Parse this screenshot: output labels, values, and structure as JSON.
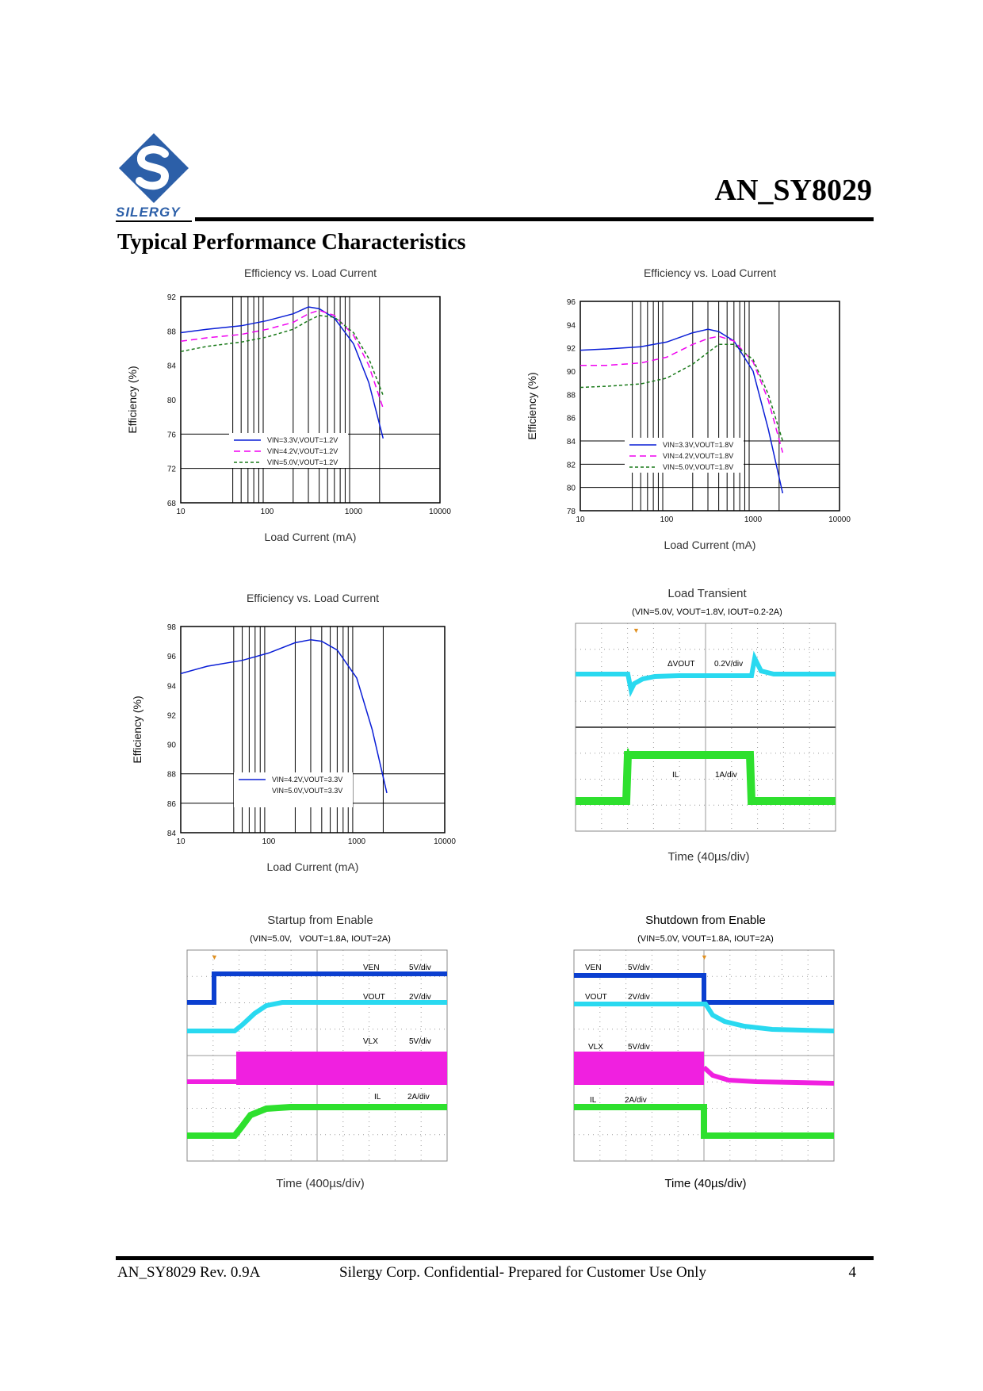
{
  "header": {
    "logo_text": "SILERGY",
    "doc_title": "AN_SY8029"
  },
  "section_title": "Typical Performance Characteristics",
  "colors": {
    "blue": "#0a1ed6",
    "magenta": "#f000f0",
    "green": "#1a7a1a",
    "scope_cyan": "#29d9f0",
    "scope_green": "#2ee02e",
    "scope_blue": "#0b3fd0",
    "scope_magenta": "#f020e0",
    "logo_blue": "#2c5fa8"
  },
  "chart_data": [
    {
      "type": "line",
      "title": "Efficiency vs. Load Current",
      "xlabel": "Load Current (mA)",
      "ylabel": "Efficiency (%)",
      "xscale": "log",
      "xlim": [
        10,
        10000
      ],
      "ylim": [
        68,
        92
      ],
      "yticks": [
        "92",
        "88",
        "84",
        "80",
        "76",
        "72",
        "68"
      ],
      "xticks": [
        "10",
        "100",
        "1000",
        "10000"
      ],
      "series": [
        {
          "name": "VIN=3.3V,VOUT=1.2V",
          "style": "solid",
          "color": "blue",
          "x": [
            10,
            20,
            50,
            100,
            200,
            300,
            400,
            600,
            1000,
            1500,
            2200
          ],
          "y": [
            87.8,
            88.2,
            88.6,
            89.2,
            90.0,
            90.8,
            90.6,
            89.5,
            86.5,
            82.0,
            75.5
          ]
        },
        {
          "name": "VIN=4.2V,VOUT=1.2V",
          "style": "dashed",
          "color": "magenta",
          "x": [
            10,
            20,
            50,
            100,
            200,
            300,
            400,
            600,
            1000,
            1500,
            2200
          ],
          "y": [
            86.8,
            87.2,
            87.6,
            88.2,
            89.0,
            90.0,
            90.4,
            89.8,
            87.5,
            84.0,
            79.0
          ]
        },
        {
          "name": "VIN=5.0V,VOUT=1.2V",
          "style": "dashed",
          "color": "green",
          "x": [
            10,
            20,
            50,
            100,
            200,
            300,
            400,
            600,
            1000,
            1500,
            2200
          ],
          "y": [
            85.6,
            86.2,
            86.7,
            87.3,
            88.2,
            89.2,
            89.8,
            89.6,
            87.8,
            84.8,
            80.5
          ]
        }
      ]
    },
    {
      "type": "line",
      "title": "Efficiency vs. Load Current",
      "xlabel": "Load Current (mA)",
      "ylabel": "Efficiency (%)",
      "xscale": "log",
      "xlim": [
        10,
        10000
      ],
      "ylim": [
        78,
        96
      ],
      "yticks": [
        "96",
        "94",
        "92",
        "90",
        "88",
        "86",
        "84",
        "82",
        "80",
        "78"
      ],
      "xticks": [
        "10",
        "100",
        "1000",
        "10000"
      ],
      "series": [
        {
          "name": "VIN=3.3V,VOUT=1.8V",
          "style": "solid",
          "color": "blue",
          "x": [
            10,
            20,
            50,
            100,
            200,
            300,
            400,
            600,
            1000,
            1500,
            2200
          ],
          "y": [
            91.8,
            91.9,
            92.1,
            92.5,
            93.3,
            93.6,
            93.4,
            92.6,
            90.0,
            85.0,
            79.5
          ]
        },
        {
          "name": "VIN=4.2V,VOUT=1.8V",
          "style": "dashed",
          "color": "magenta",
          "x": [
            10,
            20,
            50,
            100,
            200,
            300,
            400,
            600,
            1000,
            1500,
            2200
          ],
          "y": [
            90.5,
            90.5,
            90.7,
            91.2,
            92.3,
            92.8,
            93.0,
            92.6,
            90.8,
            87.5,
            83.0
          ]
        },
        {
          "name": "VIN=5.0V,VOUT=1.8V",
          "style": "dashed",
          "color": "green",
          "x": [
            10,
            20,
            50,
            100,
            200,
            300,
            400,
            600,
            1000,
            1500,
            2200
          ],
          "y": [
            88.6,
            88.7,
            88.9,
            89.4,
            90.6,
            91.6,
            92.3,
            92.3,
            91.0,
            88.0,
            84.0
          ]
        }
      ]
    },
    {
      "type": "line",
      "title": "Efficiency vs. Load Current",
      "xlabel": "Load Current (mA)",
      "ylabel": "Efficiency (%)",
      "xscale": "log",
      "xlim": [
        10,
        10000
      ],
      "ylim": [
        84,
        98
      ],
      "yticks": [
        "98",
        "96",
        "94",
        "92",
        "90",
        "88",
        "86",
        "84"
      ],
      "xticks": [
        "10",
        "100",
        "1000",
        "10000"
      ],
      "series": [
        {
          "name": "VIN=4.2V,VOUT=3.3V",
          "style": "solid",
          "color": "blue",
          "x": [
            10,
            20,
            50,
            100,
            200,
            300,
            400,
            600,
            1000,
            1500,
            2200
          ],
          "y": [
            94.8,
            95.3,
            95.7,
            96.2,
            96.9,
            97.1,
            97.0,
            96.4,
            94.5,
            91.0,
            86.7
          ]
        },
        {
          "name": "VIN=5.0V,VOUT=3.3V",
          "style": "none",
          "color": "blue",
          "x": [],
          "y": []
        }
      ]
    }
  ],
  "scopes": [
    {
      "title": "Load Transient",
      "subtitle": "(VIN=5.0V, VOUT=1.8V, IOUT=0.2-2A)",
      "time_label": "Time (40µs/div)",
      "channels": [
        {
          "label": "ΔVOUT",
          "scale": "0.2V/div"
        },
        {
          "label": "IL",
          "scale": "1A/div"
        }
      ]
    },
    {
      "title": "Startup from Enable",
      "subtitle": "(VIN=5.0V,   VOUT=1.8A, IOUT=2A)",
      "time_label": "Time (400µs/div)",
      "channels": [
        {
          "label": "VEN",
          "scale": "5V/div"
        },
        {
          "label": "VOUT",
          "scale": "2V/div"
        },
        {
          "label": "VLX",
          "scale": "5V/div"
        },
        {
          "label": "IL",
          "scale": "2A/div"
        }
      ]
    },
    {
      "title": "Shutdown from Enable",
      "subtitle": "(VIN=5.0V, VOUT=1.8A, IOUT=2A)",
      "time_label": "Time (40µs/div)",
      "channels": [
        {
          "label": "VEN",
          "scale": "5V/div"
        },
        {
          "label": "VOUT",
          "scale": "2V/div"
        },
        {
          "label": "VLX",
          "scale": "5V/div"
        },
        {
          "label": "IL",
          "scale": "2A/div"
        }
      ]
    }
  ],
  "footer": {
    "left": "AN_SY8029 Rev. 0.9A",
    "center": "Silergy Corp. Confidential- Prepared for Customer Use Only",
    "page": "4"
  }
}
